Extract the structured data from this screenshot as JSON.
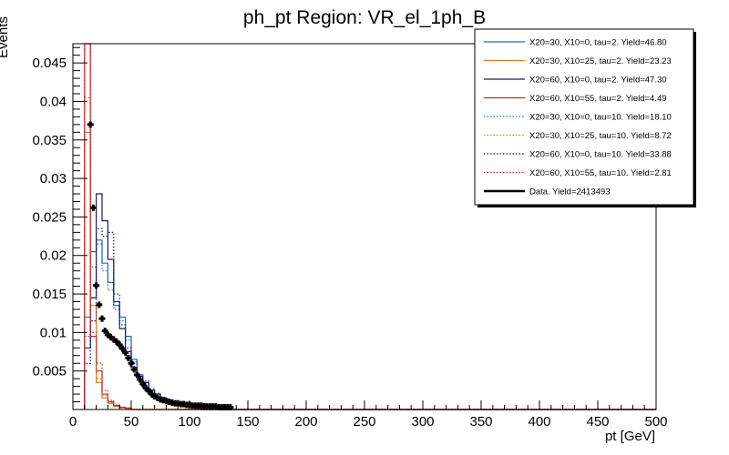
{
  "chart_data": {
    "type": "histogram-step",
    "title": "ph_pt Region: VR_el_1ph_B",
    "xlabel": "pt [GeV]",
    "ylabel": "Events",
    "xlim": [
      0,
      500
    ],
    "ylim": [
      0,
      0.0475
    ],
    "x_ticks": [
      0,
      50,
      100,
      150,
      200,
      250,
      300,
      350,
      400,
      450,
      500
    ],
    "y_ticks": [
      0.005,
      0.01,
      0.015,
      0.02,
      0.025,
      0.03,
      0.035,
      0.04,
      0.045
    ],
    "y_tick_labels": [
      "0.005",
      "0.01",
      "0.015",
      "0.02",
      "0.025",
      "0.03",
      "0.035",
      "0.04",
      "0.045"
    ],
    "bin_width": 5,
    "bin_edges_start": 10,
    "legend_position": "top-right",
    "series": [
      {
        "name": "X20=30, X10=0, tau=2. Yield=46.80",
        "color": "#1f6fb4",
        "style": "solid",
        "values": [
          0.012,
          0.0205,
          0.022,
          0.019,
          0.0165,
          0.0135,
          0.012,
          0.0095,
          0.0065,
          0.0045,
          0.0035,
          0.0025,
          0.002,
          0.0015,
          0.001,
          0.0008,
          0.0006,
          0.0004,
          0.0003,
          0.0002
        ]
      },
      {
        "name": "X20=30, X10=25, tau=2. Yield=23.23",
        "color": "#e07a20",
        "style": "solid",
        "values": [
          0.036,
          0.0135,
          0.0035,
          0.0015,
          0.0008,
          0.0004,
          0.0002,
          0.0001
        ]
      },
      {
        "name": "X20=60, X10=0, tau=2. Yield=47.30",
        "color": "#1a1a6e",
        "style": "solid",
        "values": [
          0.008,
          0.0145,
          0.028,
          0.0245,
          0.0195,
          0.014,
          0.0105,
          0.0075,
          0.0055,
          0.0043,
          0.0035,
          0.0025,
          0.002,
          0.0015,
          0.0012,
          0.0009,
          0.0006,
          0.0004,
          0.0003,
          0.0002
        ]
      },
      {
        "name": "X20=60, X10=55, tau=2. Yield=4.49",
        "color": "#c0282d",
        "style": "solid",
        "values": [
          0.0475,
          0.0095,
          0.005,
          0.002,
          0.001,
          0.0005,
          0.0003,
          0.0002
        ]
      },
      {
        "name": "X20=30, X10=0, tau=10. Yield=18.10",
        "color": "#1f6fb4",
        "style": "dotted",
        "values": [
          0.0095,
          0.0185,
          0.0215,
          0.018,
          0.0155,
          0.013,
          0.0115,
          0.009,
          0.0062,
          0.0042,
          0.0033,
          0.0023,
          0.0019,
          0.0014,
          0.001,
          0.0008,
          0.0006,
          0.0004,
          0.0003,
          0.0002
        ]
      },
      {
        "name": "X20=30, X10=25, tau=10. Yield=8.72",
        "color": "#e07a20",
        "style": "dotted",
        "values": [
          0.0405,
          0.0115,
          0.004,
          0.0018,
          0.0009,
          0.0004,
          0.0002,
          0.0001
        ]
      },
      {
        "name": "X20=60, X10=0, tau=10. Yield=33.88",
        "color": "#1a1a6e",
        "style": "dotted",
        "values": [
          0.006,
          0.0115,
          0.0235,
          0.0225,
          0.023,
          0.015,
          0.011,
          0.008,
          0.006,
          0.0045,
          0.0037,
          0.0027,
          0.0021,
          0.0016,
          0.0012,
          0.0009,
          0.0006,
          0.0004,
          0.0003,
          0.0002
        ]
      },
      {
        "name": "X20=60, X10=55, tau=10. Yield=2.81",
        "color": "#c0282d",
        "style": "dotted",
        "values": [
          0.0475,
          0.01,
          0.006,
          0.0025,
          0.0012,
          0.0006,
          0.0003,
          0.0002
        ]
      }
    ],
    "data_series": {
      "name": "Data. Yield=2413493",
      "color": "#000000",
      "x": [
        15,
        17.5,
        20,
        22.5,
        25,
        27.5,
        30,
        32.5,
        35,
        37.5,
        40,
        42.5,
        45,
        47.5,
        50,
        52.5,
        55,
        57.5,
        60,
        62.5,
        65,
        67.5,
        70,
        72.5,
        75,
        77.5,
        80,
        82.5,
        85,
        87.5,
        90,
        92.5,
        95,
        97.5,
        100,
        102.5,
        105,
        107.5,
        110,
        112.5,
        115,
        117.5,
        120,
        122.5,
        125,
        127.5,
        130,
        132.5,
        135
      ],
      "y": [
        0.037,
        0.0262,
        0.0161,
        0.0136,
        0.0118,
        0.0102,
        0.0097,
        0.0094,
        0.0091,
        0.0088,
        0.0084,
        0.0079,
        0.0074,
        0.0067,
        0.006,
        0.0052,
        0.0045,
        0.0039,
        0.0033,
        0.0028,
        0.0024,
        0.002,
        0.0017,
        0.0015,
        0.0013,
        0.0012,
        0.0011,
        0.001,
        0.0009,
        0.0008,
        0.0008,
        0.0007,
        0.0007,
        0.0006,
        0.0006,
        0.0005,
        0.0005,
        0.0005,
        0.0005,
        0.0004,
        0.0004,
        0.0004,
        0.0004,
        0.0004,
        0.0003,
        0.0003,
        0.0003,
        0.0003,
        0.0003
      ]
    }
  }
}
